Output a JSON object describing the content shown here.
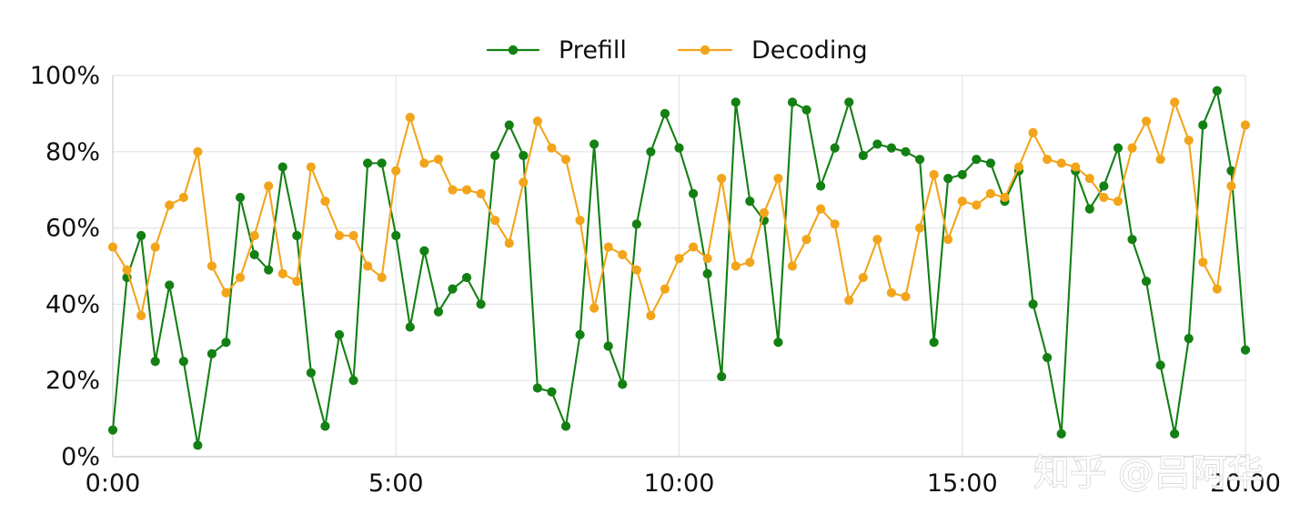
{
  "chart_data": {
    "type": "line",
    "x": [
      0,
      0.25,
      0.5,
      0.75,
      1,
      1.25,
      1.5,
      1.75,
      2,
      2.25,
      2.5,
      2.75,
      3,
      3.25,
      3.5,
      3.75,
      4,
      4.25,
      4.5,
      4.75,
      5,
      5.25,
      5.5,
      5.75,
      6,
      6.25,
      6.5,
      6.75,
      7,
      7.25,
      7.5,
      7.75,
      8,
      8.25,
      8.5,
      8.75,
      9,
      9.25,
      9.5,
      9.75,
      10,
      10.25,
      10.5,
      10.75,
      11,
      11.25,
      11.5,
      11.75,
      12,
      12.25,
      12.5,
      12.75,
      13,
      13.25,
      13.5,
      13.75,
      14,
      14.25,
      14.5,
      14.75,
      15,
      15.25,
      15.5,
      15.75,
      16,
      16.25,
      16.5,
      16.75,
      17,
      17.25,
      17.5,
      17.75,
      18,
      18.25,
      18.5,
      18.75,
      19,
      19.25,
      19.5,
      19.75,
      20
    ],
    "x_ticks": [
      {
        "value": 0,
        "label": "0:00"
      },
      {
        "value": 5,
        "label": "5:00"
      },
      {
        "value": 10,
        "label": "10:00"
      },
      {
        "value": 15,
        "label": "15:00"
      },
      {
        "value": 20,
        "label": "20:00"
      }
    ],
    "y_ticks": [
      {
        "value": 0,
        "label": "0%"
      },
      {
        "value": 20,
        "label": "20%"
      },
      {
        "value": 40,
        "label": "40%"
      },
      {
        "value": 60,
        "label": "60%"
      },
      {
        "value": 80,
        "label": "80%"
      },
      {
        "value": 100,
        "label": "100%"
      }
    ],
    "xlim": [
      0,
      20
    ],
    "ylim": [
      0,
      100
    ],
    "grid": true,
    "legend_position": "top-center",
    "series": [
      {
        "name": "Prefill",
        "color": "#138013",
        "values": [
          7,
          47,
          58,
          25,
          45,
          25,
          3,
          27,
          30,
          68,
          53,
          49,
          76,
          58,
          22,
          8,
          32,
          20,
          77,
          77,
          58,
          34,
          54,
          38,
          44,
          47,
          40,
          79,
          87,
          79,
          18,
          17,
          8,
          32,
          82,
          29,
          19,
          61,
          80,
          90,
          81,
          69,
          48,
          21,
          93,
          67,
          62,
          30,
          93,
          91,
          71,
          81,
          93,
          79,
          82,
          81,
          80,
          78,
          30,
          73,
          74,
          78,
          77,
          67,
          75,
          40,
          26,
          6,
          75,
          65,
          71,
          81,
          57,
          46,
          24,
          6,
          31,
          87,
          96,
          75,
          28
        ]
      },
      {
        "name": "Decoding",
        "color": "#f2a51b",
        "values": [
          55,
          49,
          37,
          55,
          66,
          68,
          80,
          50,
          43,
          47,
          58,
          71,
          48,
          46,
          76,
          67,
          58,
          58,
          50,
          47,
          75,
          89,
          77,
          78,
          70,
          70,
          69,
          62,
          56,
          72,
          88,
          81,
          78,
          62,
          39,
          55,
          53,
          49,
          37,
          44,
          52,
          55,
          52,
          73,
          50,
          51,
          64,
          73,
          50,
          57,
          65,
          61,
          41,
          47,
          57,
          43,
          42,
          60,
          74,
          57,
          67,
          66,
          69,
          68,
          76,
          85,
          78,
          77,
          76,
          73,
          68,
          67,
          81,
          88,
          78,
          93,
          83,
          51,
          44,
          71,
          87
        ]
      }
    ]
  },
  "watermark": {
    "text": "知乎 @吕阿华"
  }
}
